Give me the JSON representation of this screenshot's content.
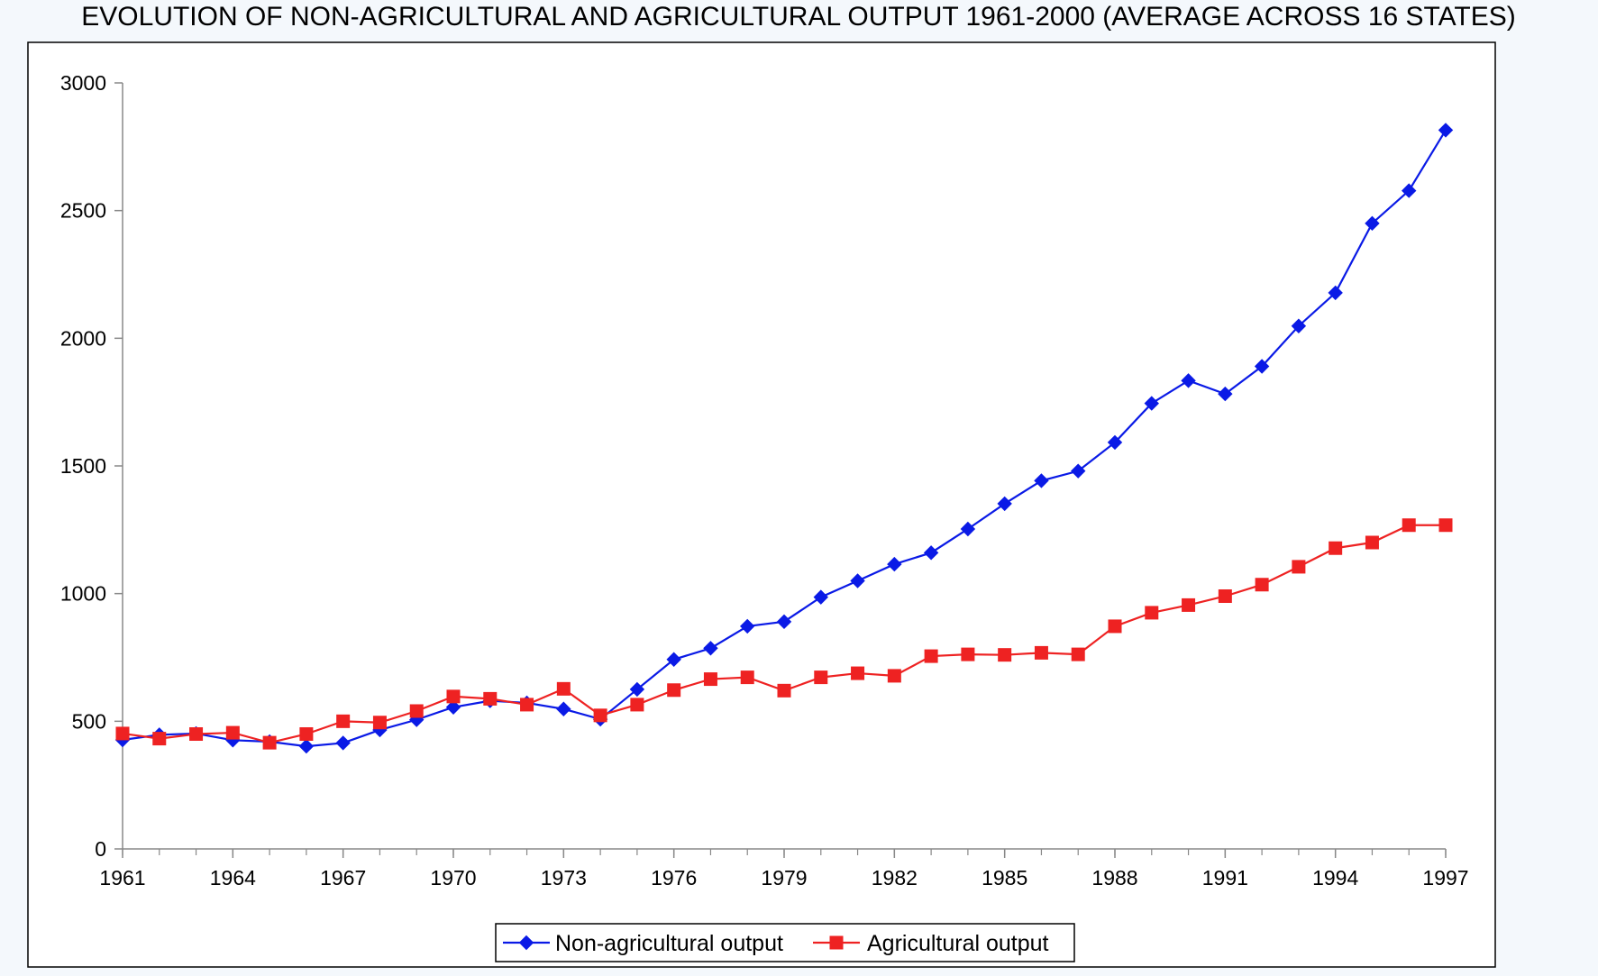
{
  "chart_data": {
    "type": "line",
    "title": "EVOLUTION OF NON-AGRICULTURAL AND AGRICULTURAL OUTPUT 1961-2000 (AVERAGE ACROSS 16 STATES)",
    "xlabel": "",
    "ylabel": "",
    "x": [
      1961,
      1962,
      1963,
      1964,
      1965,
      1966,
      1967,
      1968,
      1969,
      1970,
      1971,
      1972,
      1973,
      1974,
      1975,
      1976,
      1977,
      1978,
      1979,
      1980,
      1981,
      1982,
      1983,
      1984,
      1985,
      1986,
      1987,
      1988,
      1989,
      1990,
      1991,
      1992,
      1993,
      1994,
      1995,
      1996,
      1997
    ],
    "x_ticks": [
      1961,
      1964,
      1967,
      1970,
      1973,
      1976,
      1979,
      1982,
      1985,
      1988,
      1991,
      1994,
      1997
    ],
    "xlim": [
      1961,
      1997
    ],
    "ylim": [
      0,
      3000
    ],
    "y_ticks": [
      0,
      500,
      1000,
      1500,
      2000,
      2500,
      3000
    ],
    "grid": false,
    "legend_position": "bottom",
    "series": [
      {
        "name": "Non-agricultural output",
        "color": "#0a1ae6",
        "marker": "diamond",
        "values": [
          427,
          447,
          452,
          426,
          420,
          402,
          415,
          466,
          506,
          555,
          580,
          572,
          548,
          508,
          625,
          742,
          786,
          872,
          890,
          986,
          1050,
          1115,
          1160,
          1253,
          1352,
          1442,
          1480,
          1592,
          1745,
          1834,
          1782,
          1890,
          2048,
          2178,
          2450,
          2578,
          2815
        ]
      },
      {
        "name": "Agricultural output",
        "color": "#ee2222",
        "marker": "square",
        "values": [
          452,
          432,
          450,
          455,
          416,
          450,
          500,
          495,
          540,
          597,
          588,
          565,
          627,
          523,
          565,
          622,
          665,
          672,
          620,
          672,
          688,
          678,
          755,
          762,
          760,
          768,
          762,
          872,
          925,
          955,
          990,
          1035,
          1105,
          1178,
          1200,
          1268,
          1268
        ]
      }
    ]
  }
}
